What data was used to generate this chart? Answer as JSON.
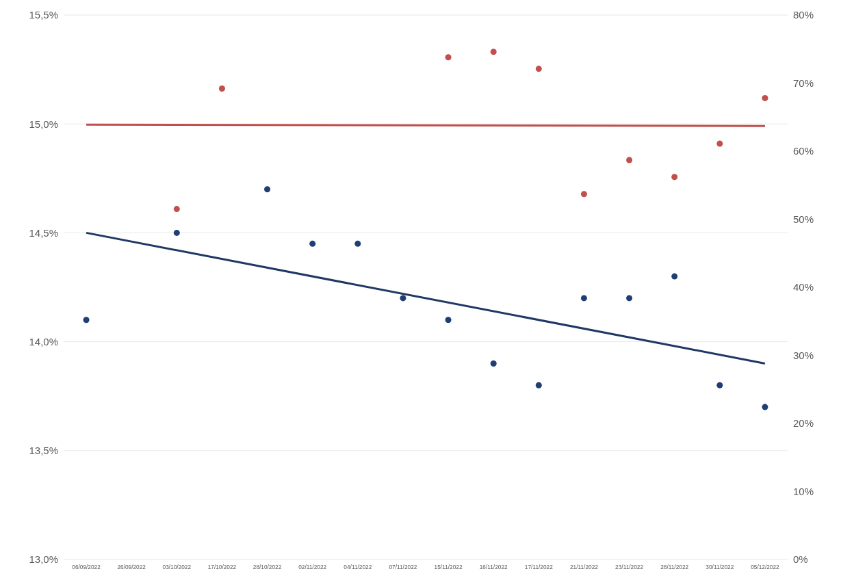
{
  "chart_data": {
    "type": "scatter",
    "categories": [
      "06/09/2022",
      "26/09/2022",
      "03/10/2022",
      "17/10/2022",
      "28/10/2022",
      "02/11/2022",
      "04/11/2022",
      "07/11/2022",
      "15/11/2022",
      "16/11/2022",
      "17/11/2022",
      "21/11/2022",
      "23/11/2022",
      "28/11/2022",
      "30/11/2022",
      "05/12/2022"
    ],
    "series": [
      {
        "color": "#1f3f74",
        "marker": "circle",
        "values": [
          14.1,
          null,
          14.5,
          null,
          14.7,
          14.45,
          14.45,
          14.2,
          14.1,
          13.9,
          13.8,
          14.2,
          14.2,
          14.3,
          13.8,
          13.7
        ]
      },
      {
        "color": "#c0504d",
        "marker": "circle",
        "axis": "y2",
        "values": [
          null,
          null,
          51.5,
          69.2,
          null,
          null,
          null,
          null,
          73.8,
          74.6,
          72.1,
          53.7,
          58.7,
          56.2,
          61.1,
          67.8
        ]
      },
      {
        "type": "line",
        "color": "#c0504d",
        "axis": "y2",
        "x": [
          "06/09/2022",
          "05/12/2022"
        ],
        "values": [
          63.9,
          63.7
        ]
      },
      {
        "type": "line",
        "color": "#203864",
        "x": [
          "06/09/2022",
          "05/12/2022"
        ],
        "values": [
          14.5,
          13.9
        ]
      }
    ],
    "ylim": [
      13.0,
      15.5
    ],
    "yticks": [
      {
        "value": 13.0,
        "label": "13,0%"
      },
      {
        "value": 13.5,
        "label": "13,5%"
      },
      {
        "value": 14.0,
        "label": "14,0%"
      },
      {
        "value": 14.5,
        "label": "14,5%"
      },
      {
        "value": 15.0,
        "label": "15,0%"
      },
      {
        "value": 15.5,
        "label": "15,5%"
      }
    ],
    "y2lim": [
      0,
      80
    ],
    "y2ticks": [
      {
        "value": 0,
        "label": "0%"
      },
      {
        "value": 10,
        "label": "10%"
      },
      {
        "value": 20,
        "label": "20%"
      },
      {
        "value": 30,
        "label": "30%"
      },
      {
        "value": 40,
        "label": "40%"
      },
      {
        "value": 50,
        "label": "50%"
      },
      {
        "value": 60,
        "label": "60%"
      },
      {
        "value": 70,
        "label": "70%"
      },
      {
        "value": 80,
        "label": "80%"
      }
    ],
    "grid": "y",
    "legend": false
  }
}
